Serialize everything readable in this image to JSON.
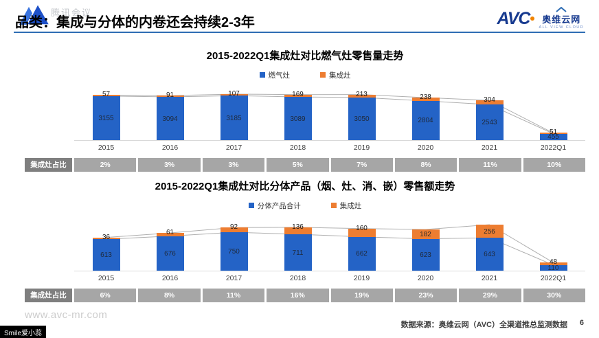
{
  "slide": {
    "title": "品类：集成与分体的内卷还会持续2-3年",
    "watermark_meeting": "腾讯会议",
    "website_watermark": "www.avc-mr.com",
    "name_tag": "Smile爱小蕊",
    "source_note": "数据来源：奥维云网（AVC）全渠道推总监测数据",
    "page_number": "6",
    "logo": {
      "abbr": "AVC",
      "name_cn": "奥维云网",
      "tagline": "ALL VIEW CLOUD"
    }
  },
  "colors": {
    "bar_blue": "#2463C6",
    "bar_orange": "#ED7D31",
    "divider_blue": "#2E6DB4",
    "table_label_bg": "#7F7F7F",
    "table_cell_bg": "#A6A6A6",
    "trend_line_gray": "#B0B0B0",
    "logo_blue": "#173A8F",
    "logo_orange": "#F08300"
  },
  "chart_data": [
    {
      "type": "bar",
      "stacked": true,
      "title": "2015-2022Q1集成灶对比燃气灶零售量走势",
      "legend_position": "top",
      "grid": false,
      "categories": [
        "2015",
        "2016",
        "2017",
        "2018",
        "2019",
        "2020",
        "2021",
        "2022Q1"
      ],
      "series": [
        {
          "name": "燃气灶",
          "color": "#2463C6",
          "values": [
            3155,
            3094,
            3185,
            3089,
            3050,
            2804,
            2543,
            455
          ]
        },
        {
          "name": "集成灶",
          "color": "#ED7D31",
          "values": [
            57,
            91,
            107,
            169,
            213,
            238,
            304,
            51
          ]
        }
      ],
      "overlay_trend_lines": [
        "total-top",
        "base-top"
      ],
      "ratio_row": {
        "label": "集成灶占比",
        "values": [
          "2%",
          "3%",
          "3%",
          "5%",
          "7%",
          "8%",
          "11%",
          "10%"
        ]
      }
    },
    {
      "type": "bar",
      "stacked": true,
      "title": "2015-2022Q1集成灶对比分体产品（烟、灶、消、嵌）零售额走势",
      "legend_position": "top",
      "grid": false,
      "categories": [
        "2015",
        "2016",
        "2017",
        "2018",
        "2019",
        "2020",
        "2021",
        "2022Q1"
      ],
      "series": [
        {
          "name": "分体产品合计",
          "color": "#2463C6",
          "values": [
            613,
            676,
            750,
            711,
            662,
            623,
            643,
            110
          ]
        },
        {
          "name": "集成灶",
          "color": "#ED7D31",
          "values": [
            36,
            61,
            92,
            136,
            160,
            182,
            256,
            48
          ]
        }
      ],
      "overlay_trend_lines": [
        "total-top",
        "base-top"
      ],
      "ratio_row": {
        "label": "集成灶占比",
        "values": [
          "6%",
          "8%",
          "11%",
          "16%",
          "19%",
          "23%",
          "29%",
          "30%"
        ]
      }
    }
  ]
}
